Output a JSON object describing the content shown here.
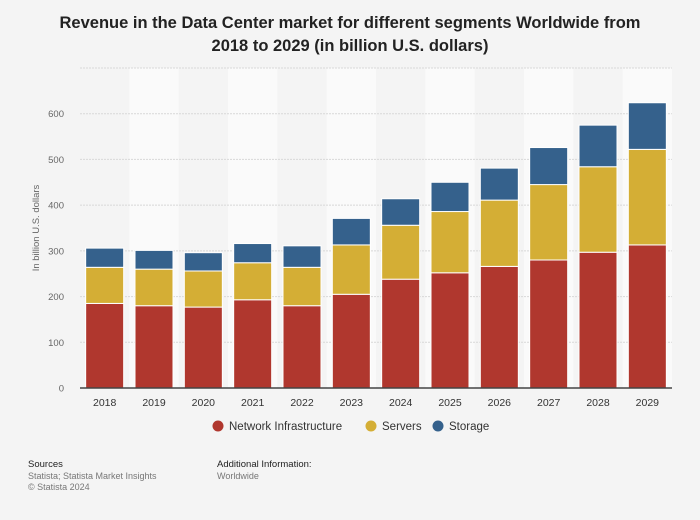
{
  "chart_data": {
    "type": "bar",
    "stacked": true,
    "title": "Revenue in the Data Center market for different segments Worldwide from 2018 to 2029 (in billion U.S. dollars)",
    "xlabel": "",
    "ylabel": "In billion U.S. dollars",
    "ylim": [
      0,
      700
    ],
    "yticks": [
      0,
      100,
      200,
      300,
      400,
      500,
      600
    ],
    "grid": true,
    "legend": "bottom",
    "categories": [
      "2018",
      "2019",
      "2020",
      "2021",
      "2022",
      "2023",
      "2024",
      "2025",
      "2026",
      "2027",
      "2028",
      "2029"
    ],
    "series": [
      {
        "name": "Network Infrastructure",
        "color": "#b0372e",
        "values": [
          185,
          180,
          177,
          193,
          180,
          205,
          238,
          252,
          266,
          280,
          297,
          313
        ]
      },
      {
        "name": "Servers",
        "color": "#d4ae35",
        "values": [
          79,
          80,
          79,
          81,
          84,
          108,
          118,
          134,
          145,
          165,
          187,
          209
        ]
      },
      {
        "name": "Storage",
        "color": "#35618c",
        "values": [
          42,
          41,
          40,
          42,
          47,
          58,
          58,
          64,
          70,
          81,
          91,
          102
        ]
      }
    ]
  },
  "footer": {
    "sources_label": "Sources",
    "sources_lines": [
      "Statista; Statista Market Insights",
      "© Statista 2024"
    ],
    "additional_label": "Additional Information:",
    "additional_text": "Worldwide"
  }
}
